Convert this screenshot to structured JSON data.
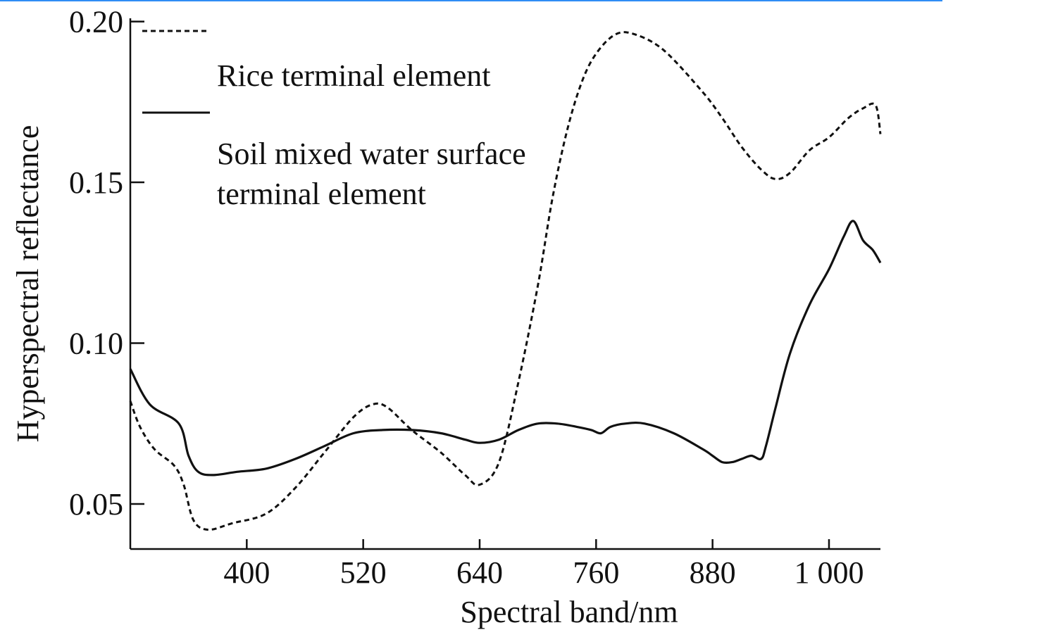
{
  "chart_data": {
    "type": "line",
    "title": "",
    "xlabel": "Spectral band/nm",
    "ylabel": "Hyperspectral reflectance",
    "xlim": [
      280,
      1053
    ],
    "ylim": [
      0.036,
      0.201
    ],
    "x_ticks": [
      400,
      520,
      640,
      760,
      880,
      1000
    ],
    "x_tick_labels": [
      "400",
      "520",
      "640",
      "760",
      "880",
      "1 000"
    ],
    "y_ticks": [
      0.05,
      0.1,
      0.15,
      0.2
    ],
    "y_tick_labels": [
      "0.05",
      "0.10",
      "0.15",
      "0.20"
    ],
    "grid": false,
    "legend_position": "top-left",
    "series": [
      {
        "name": "Rice terminal element",
        "style": "dashed",
        "color": "#111111",
        "x": [
          280,
          290,
          305,
          325,
          335,
          345,
          360,
          385,
          420,
          450,
          480,
          510,
          530,
          545,
          570,
          600,
          625,
          640,
          660,
          680,
          700,
          715,
          730,
          745,
          760,
          780,
          800,
          830,
          870,
          890,
          910,
          930,
          945,
          960,
          980,
          1000,
          1020,
          1035,
          1048,
          1053
        ],
        "y": [
          0.082,
          0.074,
          0.067,
          0.062,
          0.056,
          0.045,
          0.042,
          0.044,
          0.047,
          0.055,
          0.066,
          0.077,
          0.081,
          0.08,
          0.073,
          0.066,
          0.059,
          0.056,
          0.063,
          0.088,
          0.118,
          0.145,
          0.166,
          0.181,
          0.19,
          0.196,
          0.196,
          0.191,
          0.178,
          0.17,
          0.161,
          0.154,
          0.151,
          0.153,
          0.16,
          0.164,
          0.17,
          0.173,
          0.174,
          0.165
        ]
      },
      {
        "name": "Soil mixed water surface terminal element",
        "style": "solid",
        "color": "#111111",
        "x": [
          280,
          300,
          330,
          340,
          350,
          365,
          390,
          420,
          450,
          480,
          510,
          540,
          570,
          600,
          625,
          640,
          660,
          680,
          700,
          720,
          740,
          755,
          765,
          775,
          790,
          810,
          840,
          870,
          880,
          890,
          900,
          910,
          920,
          930,
          935,
          945,
          960,
          980,
          1000,
          1015,
          1025,
          1035,
          1045,
          1053
        ],
        "y": [
          0.092,
          0.081,
          0.075,
          0.065,
          0.06,
          0.059,
          0.06,
          0.061,
          0.064,
          0.068,
          0.072,
          0.073,
          0.073,
          0.072,
          0.07,
          0.069,
          0.07,
          0.073,
          0.075,
          0.075,
          0.074,
          0.073,
          0.072,
          0.074,
          0.075,
          0.075,
          0.072,
          0.067,
          0.065,
          0.063,
          0.063,
          0.064,
          0.065,
          0.064,
          0.068,
          0.08,
          0.097,
          0.112,
          0.123,
          0.133,
          0.138,
          0.132,
          0.129,
          0.125
        ]
      }
    ]
  }
}
